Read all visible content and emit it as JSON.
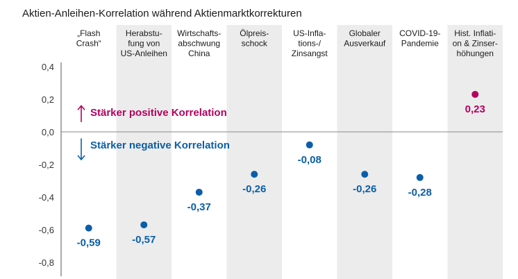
{
  "chart_data": {
    "type": "scatter",
    "title": "Aktien-Anleihen-Korrelation während Aktienmarktkorrekturen",
    "categories": [
      [
        "„Flash",
        "Crash“"
      ],
      [
        "Herabstu-",
        "fung von",
        "US-Anleihen"
      ],
      [
        "Wirtschafts-",
        "abschwung",
        "China"
      ],
      [
        "Ölpreis-",
        "schock"
      ],
      [
        "US-Infla-",
        "tions-/",
        "Zinsangst"
      ],
      [
        "Globaler",
        "Ausverkauf"
      ],
      [
        "COVID-19-",
        "Pandemie"
      ],
      [
        "Hist. Inflati-",
        "on & Zinser-",
        "höhungen"
      ]
    ],
    "values": [
      -0.59,
      -0.57,
      -0.37,
      -0.26,
      -0.08,
      -0.26,
      -0.28,
      0.23
    ],
    "value_labels": [
      "-0,59",
      "-0,57",
      "-0,37",
      "-0,26",
      "-0,08",
      "-0,26",
      "-0,28",
      "0,23"
    ],
    "yticks": [
      0.4,
      0.2,
      0.0,
      -0.2,
      -0.4,
      -0.6,
      -0.8
    ],
    "ytick_labels": [
      "0,4",
      "0,2",
      "0,0",
      "-0,2",
      "-0,4",
      "-0,6",
      "-0,8"
    ],
    "ylim": [
      -0.8,
      0.4
    ],
    "annotations": {
      "positive": "Stärker positive Korrelation",
      "negative": "Stärker negative Korrelation"
    },
    "colors": {
      "negative": "#0b5ea8",
      "positive": "#b4005f",
      "band": "#ececec",
      "zero_line": "#8a8a8a",
      "axis": "#555555"
    }
  }
}
